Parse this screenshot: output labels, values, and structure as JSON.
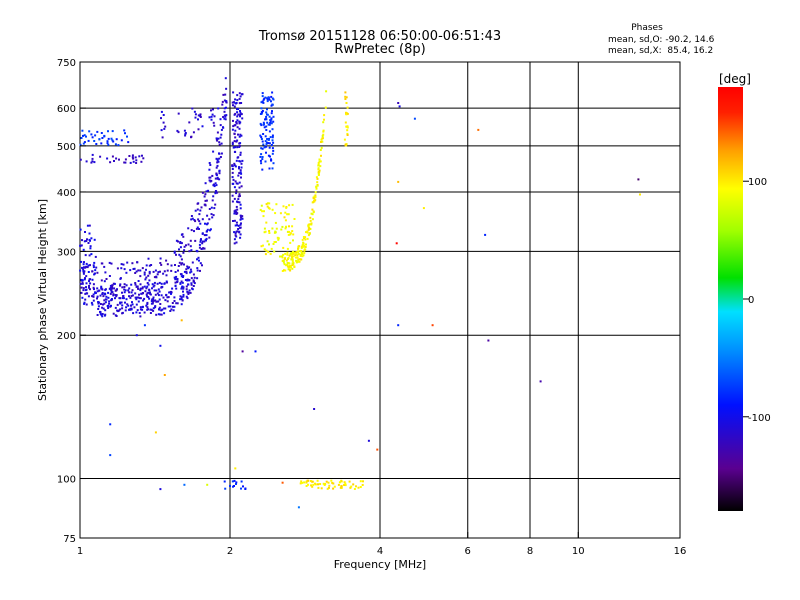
{
  "chart_data": {
    "type": "scatter",
    "title": "Tromsø 20151128 06:50:00-06:51:43",
    "subtitle": "RwPretec (8p)",
    "xlabel": "Frequency [MHz]",
    "ylabel": "Stationary phase Virtual Height [km]",
    "x_scale": "log2",
    "y_scale": "log",
    "xlim": [
      1,
      16
    ],
    "ylim": [
      75,
      750
    ],
    "x_ticks": [
      {
        "value": 1,
        "label": "1"
      },
      {
        "value": 2,
        "label": "2"
      },
      {
        "value": 4,
        "label": "4"
      },
      {
        "value": 6,
        "label": "6"
      },
      {
        "value": 8,
        "label": "8"
      },
      {
        "value": 10,
        "label": "10"
      },
      {
        "value": 16,
        "label": "16"
      }
    ],
    "y_ticks": [
      {
        "value": 75,
        "label": "75"
      },
      {
        "value": 100,
        "label": "100"
      },
      {
        "value": 200,
        "label": "200"
      },
      {
        "value": 300,
        "label": "300"
      },
      {
        "value": 400,
        "label": "400"
      },
      {
        "value": 500,
        "label": "500"
      },
      {
        "value": 600,
        "label": "600"
      },
      {
        "value": 750,
        "label": "750"
      }
    ],
    "x_gridlines": [
      2,
      4,
      6,
      8,
      10
    ],
    "y_gridlines": [
      100,
      200,
      300,
      400,
      500,
      600
    ],
    "stats": {
      "heading": "Phases",
      "line1": "mean, sd,O: -90.2, 14.6",
      "line2": "mean, sd,X:  85.4, 16.2"
    },
    "colorbar": {
      "label": "[deg]",
      "min": -180,
      "max": 180,
      "ticks": [
        {
          "value": 100,
          "label": "100"
        },
        {
          "value": 0,
          "label": "0"
        },
        {
          "value": -100,
          "label": "-100"
        }
      ]
    },
    "traces": [
      {
        "mode": "curve",
        "x_start": 1.08,
        "x_end": 1.97,
        "y_start": 237,
        "y_end": 640,
        "curvature": 6.7,
        "phase": -110,
        "spread": 0.16,
        "n": 420
      },
      {
        "mode": "curve",
        "x_start": 1.0,
        "x_end": 1.97,
        "y_start": 262,
        "y_end": 660,
        "curvature": 5.2,
        "phase": -115,
        "spread": 0.17,
        "n": 230
      },
      {
        "mode": "band",
        "x_min": 1.0,
        "x_max": 1.08,
        "y_min": 230,
        "y_max": 340,
        "phase": -105,
        "n": 70
      },
      {
        "mode": "band",
        "x_min": 2.02,
        "x_max": 2.12,
        "y_min": 310,
        "y_max": 650,
        "phase": -112,
        "n": 160
      },
      {
        "mode": "band",
        "x_min": 2.3,
        "x_max": 2.45,
        "y_min": 440,
        "y_max": 650,
        "phase": -78,
        "n": 110
      },
      {
        "mode": "band",
        "x_min": 1.0,
        "x_max": 1.25,
        "y_min": 500,
        "y_max": 540,
        "phase": -80,
        "n": 40
      },
      {
        "mode": "band",
        "x_min": 1.0,
        "x_max": 1.35,
        "y_min": 460,
        "y_max": 480,
        "phase": -118,
        "n": 30
      },
      {
        "mode": "band",
        "x_min": 1.45,
        "x_max": 1.9,
        "y_min": 520,
        "y_max": 600,
        "phase": -112,
        "n": 40
      },
      {
        "mode": "curve",
        "x_start": 2.55,
        "x_end": 3.12,
        "y_start": 285,
        "y_end": 640,
        "curvature": 3.2,
        "phase": 95,
        "spread": 0.09,
        "n": 190
      },
      {
        "mode": "band",
        "x_min": 2.3,
        "x_max": 2.7,
        "y_min": 290,
        "y_max": 380,
        "phase": 92,
        "n": 80
      },
      {
        "mode": "band",
        "x_min": 3.4,
        "x_max": 3.45,
        "y_min": 500,
        "y_max": 650,
        "phase": 102,
        "n": 25
      },
      {
        "mode": "band",
        "x_min": 2.75,
        "x_max": 3.7,
        "y_min": 95,
        "y_max": 99,
        "phase": 100,
        "n": 60
      },
      {
        "mode": "band",
        "x_min": 1.95,
        "x_max": 2.15,
        "y_min": 95,
        "y_max": 99,
        "phase": -80,
        "n": 14
      }
    ],
    "points": [
      {
        "x": 1.15,
        "y": 130,
        "phase": -90
      },
      {
        "x": 1.15,
        "y": 112,
        "phase": -80
      },
      {
        "x": 1.3,
        "y": 200,
        "phase": -100
      },
      {
        "x": 1.35,
        "y": 210,
        "phase": -80
      },
      {
        "x": 1.42,
        "y": 125,
        "phase": 100
      },
      {
        "x": 1.45,
        "y": 190,
        "phase": -90
      },
      {
        "x": 1.48,
        "y": 165,
        "phase": 120
      },
      {
        "x": 1.45,
        "y": 95,
        "phase": -100
      },
      {
        "x": 1.6,
        "y": 215,
        "phase": 110
      },
      {
        "x": 1.62,
        "y": 97,
        "phase": -60
      },
      {
        "x": 1.8,
        "y": 97,
        "phase": 90
      },
      {
        "x": 2.05,
        "y": 105,
        "phase": 100
      },
      {
        "x": 2.12,
        "y": 185,
        "phase": -150
      },
      {
        "x": 2.25,
        "y": 185,
        "phase": -90
      },
      {
        "x": 2.55,
        "y": 98,
        "phase": 150
      },
      {
        "x": 2.75,
        "y": 87,
        "phase": -60
      },
      {
        "x": 2.95,
        "y": 140,
        "phase": -110
      },
      {
        "x": 3.8,
        "y": 120,
        "phase": -120
      },
      {
        "x": 3.95,
        "y": 115,
        "phase": 150
      },
      {
        "x": 4.35,
        "y": 615,
        "phase": -130
      },
      {
        "x": 4.38,
        "y": 605,
        "phase": -100
      },
      {
        "x": 4.32,
        "y": 312,
        "phase": 170
      },
      {
        "x": 4.35,
        "y": 210,
        "phase": -80
      },
      {
        "x": 4.35,
        "y": 420,
        "phase": 110
      },
      {
        "x": 4.7,
        "y": 570,
        "phase": -60
      },
      {
        "x": 4.9,
        "y": 370,
        "phase": 100
      },
      {
        "x": 5.1,
        "y": 210,
        "phase": 150
      },
      {
        "x": 6.3,
        "y": 540,
        "phase": 140
      },
      {
        "x": 6.5,
        "y": 325,
        "phase": -80
      },
      {
        "x": 6.6,
        "y": 195,
        "phase": -130
      },
      {
        "x": 8.4,
        "y": 160,
        "phase": -140
      },
      {
        "x": 13.2,
        "y": 425,
        "phase": -150
      },
      {
        "x": 13.3,
        "y": 395,
        "phase": 100
      }
    ]
  }
}
